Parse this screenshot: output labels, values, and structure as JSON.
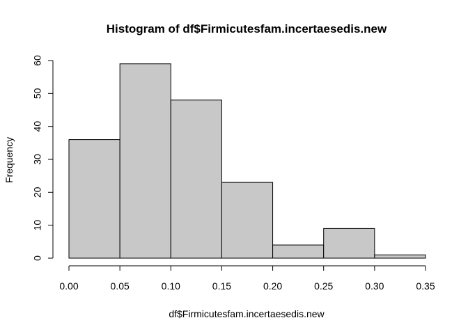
{
  "chart_data": {
    "type": "bar",
    "title": "Histogram of df$Firmicutesfam.incertaesedis.new",
    "xlabel": "df$Firmicutesfam.incertaesedis.new",
    "ylabel": "Frequency",
    "bins": [
      {
        "start": 0.0,
        "end": 0.05,
        "count": 36
      },
      {
        "start": 0.05,
        "end": 0.1,
        "count": 59
      },
      {
        "start": 0.1,
        "end": 0.15,
        "count": 48
      },
      {
        "start": 0.15,
        "end": 0.2,
        "count": 23
      },
      {
        "start": 0.2,
        "end": 0.25,
        "count": 4
      },
      {
        "start": 0.25,
        "end": 0.3,
        "count": 9
      },
      {
        "start": 0.3,
        "end": 0.35,
        "count": 1
      }
    ],
    "xlim": [
      0.0,
      0.35
    ],
    "ylim": [
      0,
      60
    ],
    "x_ticks": [
      "0.00",
      "0.05",
      "0.10",
      "0.15",
      "0.20",
      "0.25",
      "0.30",
      "0.35"
    ],
    "y_ticks": [
      "0",
      "10",
      "20",
      "30",
      "40",
      "50",
      "60"
    ],
    "bar_color": "#c8c8c8",
    "grid": false,
    "legend": "none"
  }
}
